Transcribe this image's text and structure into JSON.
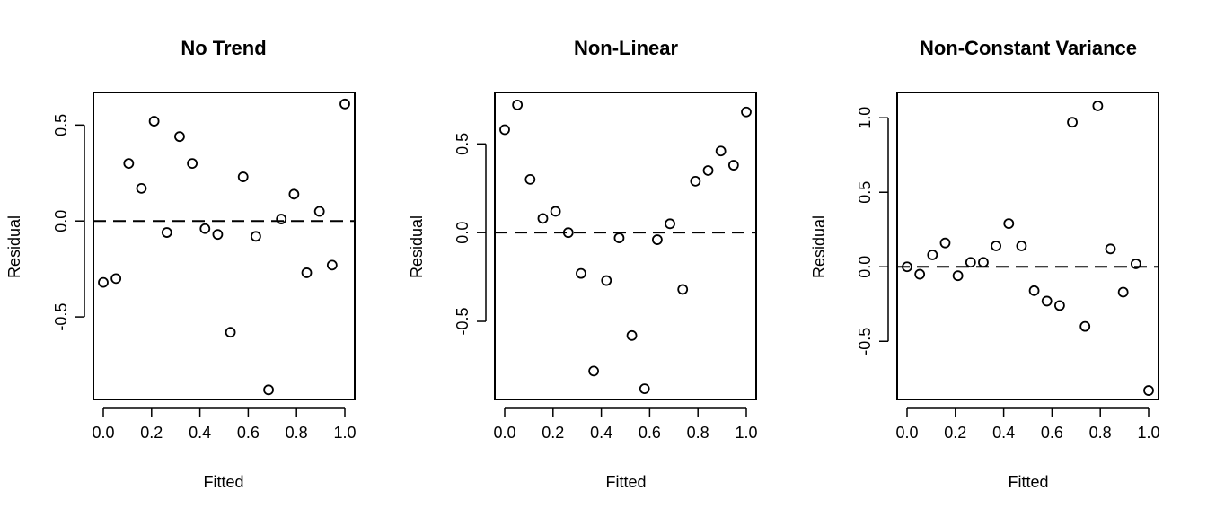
{
  "chart_data": [
    {
      "type": "scatter",
      "title": "No Trend",
      "xlabel": "Fitted",
      "ylabel": "Residual",
      "xlim": [
        0,
        1
      ],
      "ylim": [
        -0.93,
        0.67
      ],
      "xticks": [
        "0.0",
        "0.2",
        "0.4",
        "0.6",
        "0.8",
        "1.0"
      ],
      "xtick_values": [
        0,
        0.2,
        0.4,
        0.6,
        0.8,
        1.0
      ],
      "yticks": [
        "-0.5",
        "0.0",
        "0.5"
      ],
      "ytick_values": [
        -0.5,
        0,
        0.5
      ],
      "reference_line": {
        "y": 0,
        "style": "dashed"
      },
      "marker": "open-circle",
      "x": [
        0.0,
        0.0526,
        0.1053,
        0.1579,
        0.2105,
        0.2632,
        0.3158,
        0.3684,
        0.4211,
        0.4737,
        0.5263,
        0.5789,
        0.6316,
        0.6842,
        0.7368,
        0.7895,
        0.8421,
        0.8947,
        0.9474,
        1.0
      ],
      "y": [
        -0.32,
        -0.3,
        0.3,
        0.17,
        0.52,
        -0.06,
        0.44,
        0.3,
        -0.04,
        -0.07,
        -0.58,
        0.23,
        -0.08,
        -0.88,
        0.01,
        0.14,
        -0.27,
        0.05,
        -0.23,
        0.61
      ]
    },
    {
      "type": "scatter",
      "title": "Non-Linear",
      "xlabel": "Fitted",
      "ylabel": "Residual",
      "xlim": [
        0,
        1
      ],
      "ylim": [
        -0.94,
        0.79
      ],
      "xticks": [
        "0.0",
        "0.2",
        "0.4",
        "0.6",
        "0.8",
        "1.0"
      ],
      "xtick_values": [
        0,
        0.2,
        0.4,
        0.6,
        0.8,
        1.0
      ],
      "yticks": [
        "-0.5",
        "0.0",
        "0.5"
      ],
      "ytick_values": [
        -0.5,
        0,
        0.5
      ],
      "reference_line": {
        "y": 0,
        "style": "dashed"
      },
      "marker": "open-circle",
      "x": [
        0.0,
        0.0526,
        0.1053,
        0.1579,
        0.2105,
        0.2632,
        0.3158,
        0.3684,
        0.4211,
        0.4737,
        0.5263,
        0.5789,
        0.6316,
        0.6842,
        0.7368,
        0.7895,
        0.8421,
        0.8947,
        0.9474,
        1.0
      ],
      "y": [
        0.58,
        0.72,
        0.3,
        0.08,
        0.12,
        0.0,
        -0.23,
        -0.78,
        -0.27,
        -0.03,
        -0.58,
        -0.88,
        -0.04,
        0.05,
        -0.32,
        0.29,
        0.35,
        0.46,
        0.38,
        0.68
      ]
    },
    {
      "type": "scatter",
      "title": "Non-Constant Variance",
      "xlabel": "Fitted",
      "ylabel": "Residual",
      "xlim": [
        0,
        1
      ],
      "ylim": [
        -0.89,
        1.17
      ],
      "xticks": [
        "0.0",
        "0.2",
        "0.4",
        "0.6",
        "0.8",
        "1.0"
      ],
      "xtick_values": [
        0,
        0.2,
        0.4,
        0.6,
        0.8,
        1.0
      ],
      "yticks": [
        "-0.5",
        "0.0",
        "0.5",
        "1.0"
      ],
      "ytick_values": [
        -0.5,
        0,
        0.5,
        1.0
      ],
      "reference_line": {
        "y": 0,
        "style": "dashed"
      },
      "marker": "open-circle",
      "x": [
        0.0,
        0.0526,
        0.1053,
        0.1579,
        0.2105,
        0.2632,
        0.3158,
        0.3684,
        0.4211,
        0.4737,
        0.5263,
        0.5789,
        0.6316,
        0.6842,
        0.7368,
        0.7895,
        0.8421,
        0.8947,
        0.9474,
        1.0
      ],
      "y": [
        0.0,
        -0.05,
        0.08,
        0.16,
        -0.06,
        0.03,
        0.03,
        0.14,
        0.29,
        0.14,
        -0.16,
        -0.23,
        -0.26,
        0.97,
        -0.4,
        1.08,
        0.12,
        -0.17,
        0.02,
        -0.83
      ]
    }
  ]
}
